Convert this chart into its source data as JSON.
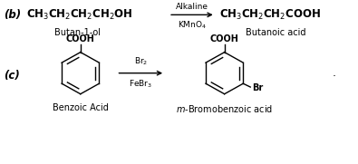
{
  "bg_color": "#ffffff",
  "fig_width": 3.95,
  "fig_height": 1.81,
  "dpi": 100,
  "label_b": "(b)",
  "reactant_b": "CH$_3$CH$_2$CH$_2$CH$_2$OH",
  "reactant_b_name": "Butan-1-ol",
  "arrow_b_above": "Alkaline",
  "arrow_b_below": "KMnO$_4$",
  "product_b": "CH$_3$CH$_2$CH$_2$COOH",
  "product_b_name": "Butanoic acid",
  "label_c": "(c)",
  "arrow_c_above": "Br$_2$",
  "arrow_c_below": "FeBr$_3$",
  "reactant_c_name": "Benzoic Acid",
  "product_c_name": "$m$-Bromobenzoic acid",
  "font_size_main": 8.5,
  "font_size_label": 8.5,
  "font_size_name": 7.0,
  "font_size_arrow": 6.5,
  "font_size_cooh": 7.0,
  "font_size_br": 7.0
}
